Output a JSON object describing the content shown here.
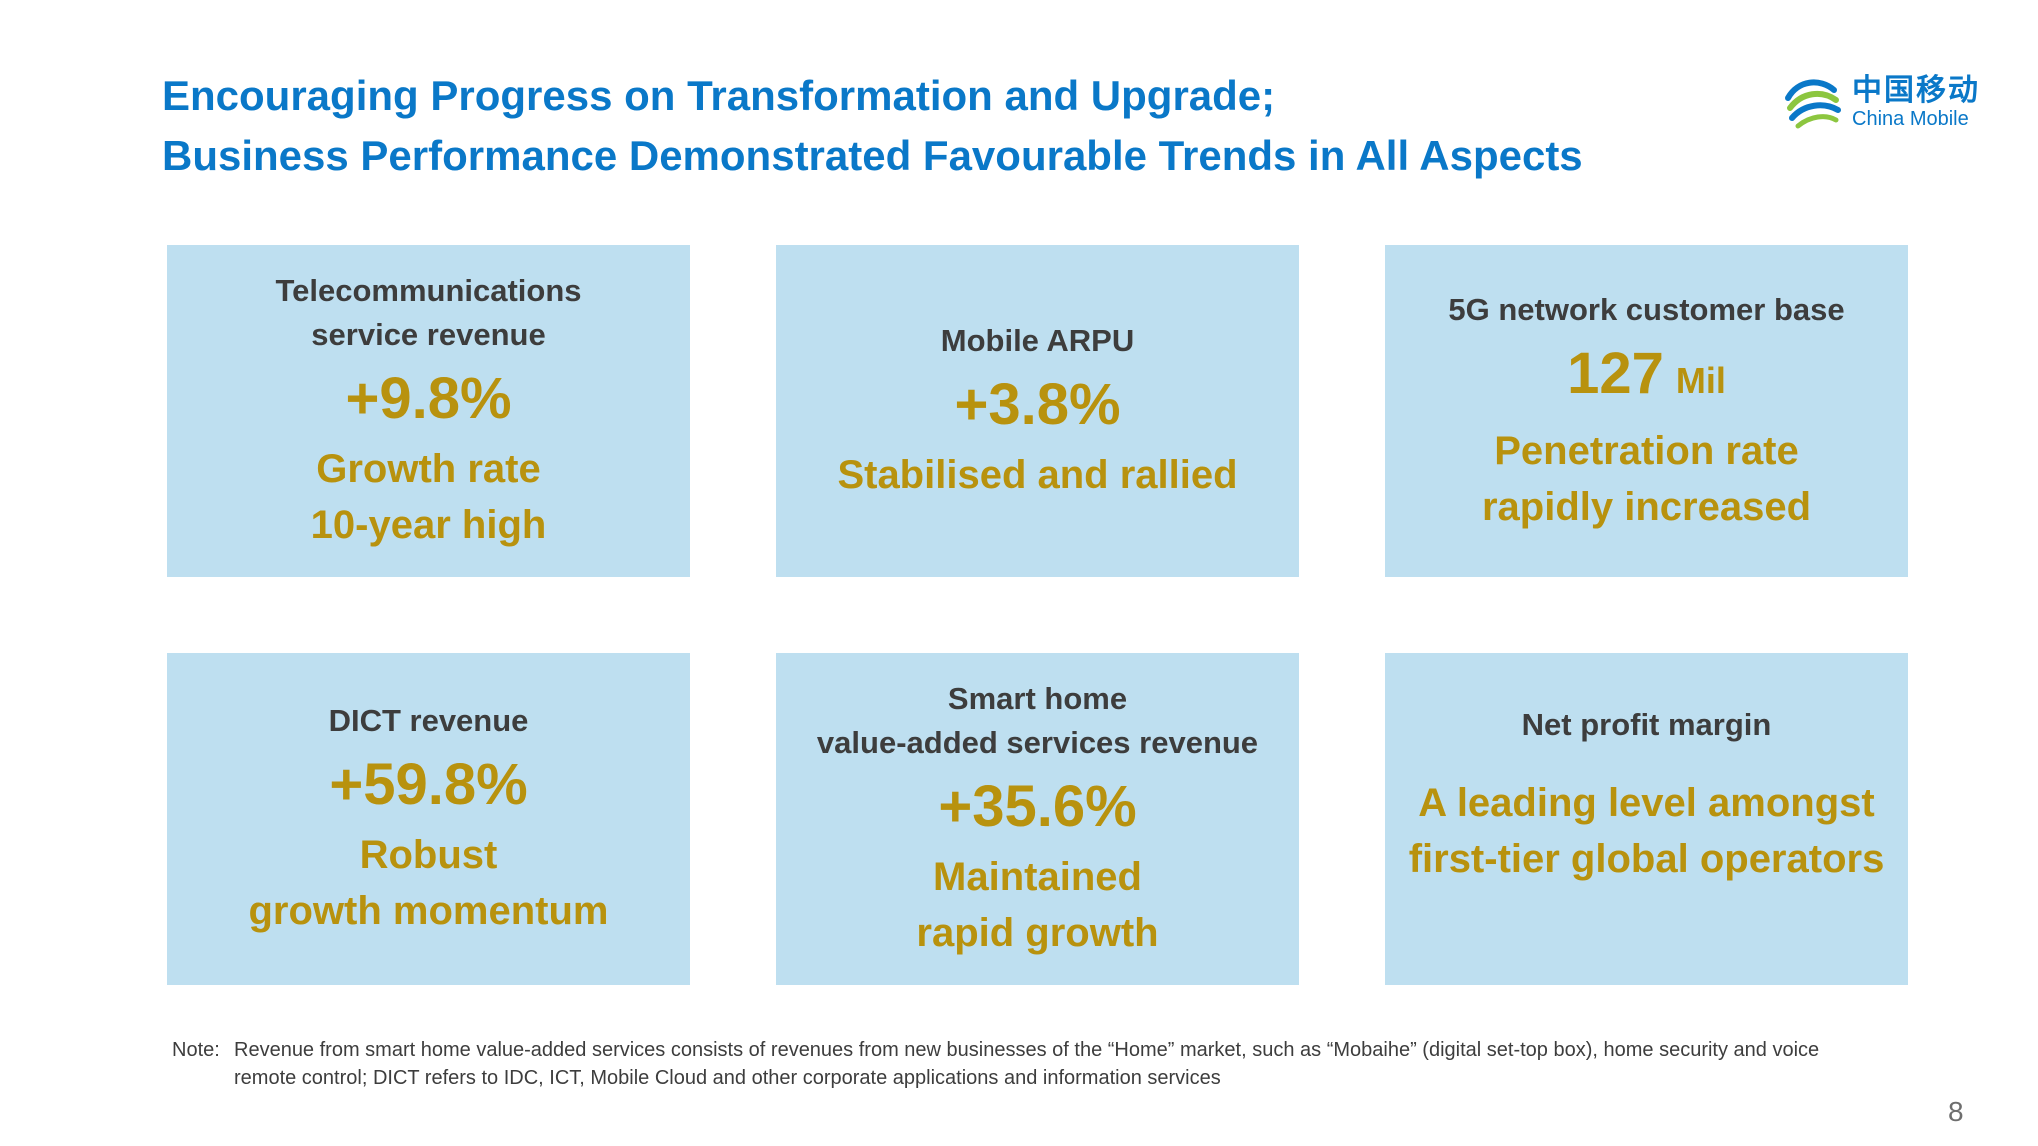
{
  "header": {
    "title_line1": "Encouraging Progress on Transformation and Upgrade;",
    "title_line2": "Business Performance Demonstrated Favourable Trends in All Aspects"
  },
  "logo": {
    "chinese": "中国移动",
    "english": "China Mobile",
    "icon": "china-mobile-swirl-icon",
    "color_blue": "#0a78c8",
    "color_green": "#8cc63f"
  },
  "colors": {
    "title": "#0a78c8",
    "card_background": "#bedff0",
    "highlight": "#b8920e",
    "label_text": "#3d3d3d"
  },
  "cards": [
    {
      "label": "Telecommunications\nservice revenue",
      "value": "+9.8%",
      "unit": "",
      "description": "Growth rate\n10-year high"
    },
    {
      "label": "Mobile ARPU",
      "value": "+3.8%",
      "unit": "",
      "description": "Stabilised and rallied"
    },
    {
      "label": "5G network customer base",
      "value": "127",
      "unit": "Mil",
      "description": "Penetration rate\nrapidly increased"
    },
    {
      "label": "DICT revenue",
      "value": "+59.8%",
      "unit": "",
      "description": "Robust\ngrowth momentum"
    },
    {
      "label": "Smart home\nvalue-added services revenue",
      "value": "+35.6%",
      "unit": "",
      "description": "Maintained\nrapid growth"
    },
    {
      "label": "Net profit margin",
      "value": "",
      "unit": "",
      "description": "A leading level amongst\nfirst-tier global operators"
    }
  ],
  "note": {
    "label": "Note:",
    "text": "Revenue from smart home value-added services consists of revenues from new businesses of the “Home” market, such as “Mobaihe” (digital set-top box), home security and voice remote control; DICT refers to IDC, ICT, Mobile Cloud and other corporate applications and information services"
  },
  "page_number": "8"
}
